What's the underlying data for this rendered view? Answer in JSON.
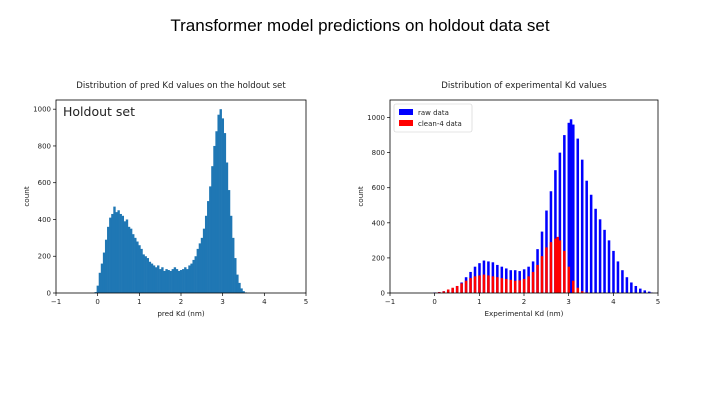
{
  "slide": {
    "title": "Transformer model predictions on holdout data set"
  },
  "colors": {
    "bar_blue": "#1f77b4",
    "raw": "#0000ff",
    "clean": "#ff0000"
  },
  "chart_data": [
    {
      "type": "bar",
      "title": "Distribution of pred Kd values on the holdout set",
      "xlabel": "pred Kd (nm)",
      "ylabel": "count",
      "annotation": "Holdout set",
      "xlim": [
        -1,
        5
      ],
      "ylim": [
        0,
        1050
      ],
      "xticks": [
        "−1",
        "0",
        "1",
        "2",
        "3",
        "4",
        "5"
      ],
      "yticks": [
        "0",
        "200",
        "400",
        "600",
        "800",
        "1000"
      ],
      "bin_width": 0.05,
      "series": [
        {
          "color": "#1f77b4",
          "points": [
            [
              -0.05,
              5
            ],
            [
              0.0,
              40
            ],
            [
              0.05,
              110
            ],
            [
              0.1,
              160
            ],
            [
              0.15,
              220
            ],
            [
              0.2,
              290
            ],
            [
              0.25,
              360
            ],
            [
              0.3,
              410
            ],
            [
              0.35,
              430
            ],
            [
              0.4,
              470
            ],
            [
              0.45,
              440
            ],
            [
              0.5,
              450
            ],
            [
              0.55,
              430
            ],
            [
              0.6,
              420
            ],
            [
              0.65,
              390
            ],
            [
              0.7,
              400
            ],
            [
              0.75,
              360
            ],
            [
              0.8,
              350
            ],
            [
              0.85,
              320
            ],
            [
              0.9,
              300
            ],
            [
              0.95,
              280
            ],
            [
              1.0,
              260
            ],
            [
              1.05,
              240
            ],
            [
              1.1,
              210
            ],
            [
              1.15,
              200
            ],
            [
              1.2,
              190
            ],
            [
              1.25,
              170
            ],
            [
              1.3,
              160
            ],
            [
              1.35,
              150
            ],
            [
              1.4,
              140
            ],
            [
              1.45,
              150
            ],
            [
              1.5,
              130
            ],
            [
              1.55,
              140
            ],
            [
              1.6,
              120
            ],
            [
              1.65,
              130
            ],
            [
              1.7,
              125
            ],
            [
              1.75,
              120
            ],
            [
              1.8,
              130
            ],
            [
              1.85,
              140
            ],
            [
              1.9,
              130
            ],
            [
              1.95,
              120
            ],
            [
              2.0,
              125
            ],
            [
              2.05,
              130
            ],
            [
              2.1,
              140
            ],
            [
              2.15,
              130
            ],
            [
              2.2,
              150
            ],
            [
              2.25,
              160
            ],
            [
              2.3,
              180
            ],
            [
              2.35,
              200
            ],
            [
              2.4,
              240
            ],
            [
              2.45,
              270
            ],
            [
              2.5,
              300
            ],
            [
              2.55,
              350
            ],
            [
              2.6,
              420
            ],
            [
              2.65,
              500
            ],
            [
              2.7,
              580
            ],
            [
              2.75,
              690
            ],
            [
              2.8,
              800
            ],
            [
              2.85,
              880
            ],
            [
              2.9,
              970
            ],
            [
              2.95,
              1000
            ],
            [
              3.0,
              950
            ],
            [
              3.05,
              870
            ],
            [
              3.1,
              710
            ],
            [
              3.15,
              560
            ],
            [
              3.2,
              420
            ],
            [
              3.25,
              300
            ],
            [
              3.3,
              190
            ],
            [
              3.35,
              100
            ],
            [
              3.4,
              55
            ],
            [
              3.45,
              25
            ],
            [
              3.5,
              10
            ],
            [
              3.55,
              3
            ]
          ]
        }
      ]
    },
    {
      "type": "bar",
      "title": "Distribution of experimental Kd values",
      "xlabel": "Experimental Kd (nm)",
      "ylabel": "count",
      "xlim": [
        -1,
        5
      ],
      "ylim": [
        0,
        1100
      ],
      "xticks": [
        "−1",
        "0",
        "1",
        "2",
        "3",
        "4",
        "5"
      ],
      "yticks": [
        "0",
        "200",
        "400",
        "600",
        "800",
        "1000"
      ],
      "legend": "top-left",
      "bin_width": 0.05,
      "series": [
        {
          "name": "raw data",
          "color": "#0000ff",
          "points": [
            [
              0.0,
              3
            ],
            [
              0.1,
              5
            ],
            [
              0.2,
              10
            ],
            [
              0.3,
              15
            ],
            [
              0.4,
              25
            ],
            [
              0.5,
              40
            ],
            [
              0.6,
              60
            ],
            [
              0.7,
              90
            ],
            [
              0.8,
              120
            ],
            [
              0.9,
              150
            ],
            [
              1.0,
              170
            ],
            [
              1.1,
              185
            ],
            [
              1.2,
              180
            ],
            [
              1.3,
              175
            ],
            [
              1.4,
              160
            ],
            [
              1.5,
              150
            ],
            [
              1.6,
              140
            ],
            [
              1.7,
              130
            ],
            [
              1.8,
              130
            ],
            [
              1.9,
              125
            ],
            [
              2.0,
              135
            ],
            [
              2.1,
              150
            ],
            [
              2.2,
              180
            ],
            [
              2.3,
              250
            ],
            [
              2.4,
              350
            ],
            [
              2.5,
              470
            ],
            [
              2.6,
              580
            ],
            [
              2.7,
              700
            ],
            [
              2.8,
              800
            ],
            [
              2.9,
              900
            ],
            [
              3.0,
              970
            ],
            [
              3.05,
              990
            ],
            [
              3.1,
              960
            ],
            [
              3.2,
              880
            ],
            [
              3.3,
              760
            ],
            [
              3.4,
              640
            ],
            [
              3.5,
              560
            ],
            [
              3.6,
              480
            ],
            [
              3.7,
              420
            ],
            [
              3.8,
              360
            ],
            [
              3.9,
              300
            ],
            [
              4.0,
              240
            ],
            [
              4.1,
              180
            ],
            [
              4.2,
              130
            ],
            [
              4.3,
              90
            ],
            [
              4.4,
              60
            ],
            [
              4.5,
              40
            ],
            [
              4.6,
              25
            ],
            [
              4.7,
              15
            ],
            [
              4.8,
              8
            ],
            [
              4.85,
              3
            ]
          ]
        },
        {
          "name": "clean-4 data",
          "color": "#ff0000",
          "points": [
            [
              0.05,
              2
            ],
            [
              0.1,
              5
            ],
            [
              0.2,
              10
            ],
            [
              0.3,
              20
            ],
            [
              0.4,
              30
            ],
            [
              0.5,
              40
            ],
            [
              0.6,
              55
            ],
            [
              0.7,
              70
            ],
            [
              0.8,
              85
            ],
            [
              0.9,
              95
            ],
            [
              1.0,
              100
            ],
            [
              1.1,
              105
            ],
            [
              1.2,
              100
            ],
            [
              1.3,
              95
            ],
            [
              1.4,
              90
            ],
            [
              1.5,
              85
            ],
            [
              1.6,
              80
            ],
            [
              1.7,
              75
            ],
            [
              1.8,
              70
            ],
            [
              1.9,
              72
            ],
            [
              2.0,
              80
            ],
            [
              2.1,
              95
            ],
            [
              2.2,
              120
            ],
            [
              2.3,
              160
            ],
            [
              2.4,
              210
            ],
            [
              2.5,
              260
            ],
            [
              2.6,
              290
            ],
            [
              2.7,
              310
            ],
            [
              2.75,
              320
            ],
            [
              2.8,
              300
            ],
            [
              2.9,
              240
            ],
            [
              3.0,
              150
            ],
            [
              3.1,
              70
            ],
            [
              3.2,
              30
            ],
            [
              3.3,
              10
            ],
            [
              3.4,
              3
            ]
          ]
        }
      ]
    }
  ]
}
